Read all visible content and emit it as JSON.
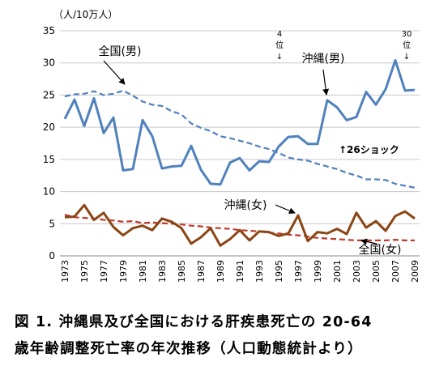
{
  "chart_data": {
    "type": "line",
    "y_unit_label": "（人/10万人）",
    "ylim": [
      0,
      35
    ],
    "yticks": [
      0,
      5,
      10,
      15,
      20,
      25,
      30,
      35
    ],
    "x": [
      1973,
      1974,
      1975,
      1976,
      1977,
      1978,
      1979,
      1980,
      1981,
      1982,
      1983,
      1984,
      1985,
      1986,
      1987,
      1988,
      1989,
      1990,
      1991,
      1992,
      1993,
      1994,
      1995,
      1996,
      1997,
      1998,
      1999,
      2000,
      2001,
      2002,
      2003,
      2004,
      2005,
      2006,
      2007,
      2008,
      2009
    ],
    "xtick_labels": [
      "1973",
      "1975",
      "1977",
      "1979",
      "1981",
      "1983",
      "1985",
      "1987",
      "1989",
      "1991",
      "1993",
      "1995",
      "1997",
      "1999",
      "2001",
      "2003",
      "2005",
      "2007",
      "2009"
    ],
    "grid": "horizontal",
    "series": [
      {
        "name": "沖縄（男）",
        "color": "#4F81BD",
        "style": "solid",
        "values": [
          21.3,
          24.3,
          20.2,
          24.5,
          19.1,
          21.5,
          13.3,
          13.5,
          21.1,
          18.6,
          13.6,
          13.9,
          14.0,
          17.1,
          13.4,
          11.2,
          11.1,
          14.5,
          15.2,
          13.3,
          14.7,
          14.6,
          17.0,
          18.5,
          18.6,
          17.4,
          17.4,
          24.2,
          23.1,
          21.1,
          21.6,
          25.5,
          23.5,
          25.9,
          30.4,
          25.7,
          25.8
        ]
      },
      {
        "name": "全国（男）",
        "color": "#4F81BD",
        "style": "dashed",
        "values": [
          24.8,
          25.1,
          25.2,
          25.6,
          25.0,
          25.2,
          25.7,
          24.9,
          24.0,
          23.5,
          23.3,
          22.5,
          22.0,
          20.6,
          19.9,
          19.4,
          18.6,
          18.3,
          17.9,
          17.5,
          17.0,
          16.6,
          16.0,
          15.3,
          15.0,
          14.8,
          14.3,
          13.9,
          13.5,
          12.9,
          12.5,
          11.9,
          11.9,
          11.8,
          11.2,
          10.9,
          10.6
        ]
      },
      {
        "name": "沖縄（女）",
        "color": "#8B4513",
        "style": "solid",
        "values": [
          6.0,
          6.1,
          7.9,
          5.6,
          6.7,
          4.5,
          3.2,
          4.3,
          4.7,
          4.0,
          5.8,
          5.3,
          4.3,
          1.9,
          2.9,
          4.3,
          1.6,
          2.6,
          4.0,
          2.4,
          3.8,
          3.7,
          3.1,
          3.5,
          6.3,
          2.3,
          3.7,
          3.5,
          4.2,
          3.4,
          6.7,
          4.4,
          5.4,
          3.9,
          6.2,
          6.9,
          5.8
        ]
      },
      {
        "name": "全国（女）",
        "color": "#C0392B",
        "style": "dashed",
        "values": [
          6.4,
          6.0,
          5.9,
          5.8,
          5.6,
          5.5,
          5.3,
          5.4,
          5.1,
          5.2,
          5.1,
          5.0,
          4.9,
          4.7,
          4.6,
          4.4,
          4.3,
          4.2,
          4.0,
          3.9,
          3.8,
          3.6,
          3.5,
          3.3,
          3.2,
          3.0,
          2.8,
          2.7,
          2.6,
          2.5,
          2.4,
          2.4,
          2.4,
          2.4,
          2.5,
          2.4,
          2.4
        ]
      }
    ],
    "series_labels": {
      "okinawa_male": "沖縄(男)",
      "national_male": "全国(男)",
      "okinawa_female": "沖縄(女)",
      "national_female": "全国(女)"
    },
    "annotations": {
      "rank4_line1": "4",
      "rank4_line2": "位",
      "rank30_line1": "30",
      "rank30_line2": "位",
      "arrow_down": "↓",
      "shock": "↑26ショック"
    }
  },
  "caption": {
    "line1": "図 1. 沖縄県及び全国における肝疾患死亡の 20-64",
    "line2": "歳年齢調整死亡率の年次推移（人口動態統計より）"
  }
}
